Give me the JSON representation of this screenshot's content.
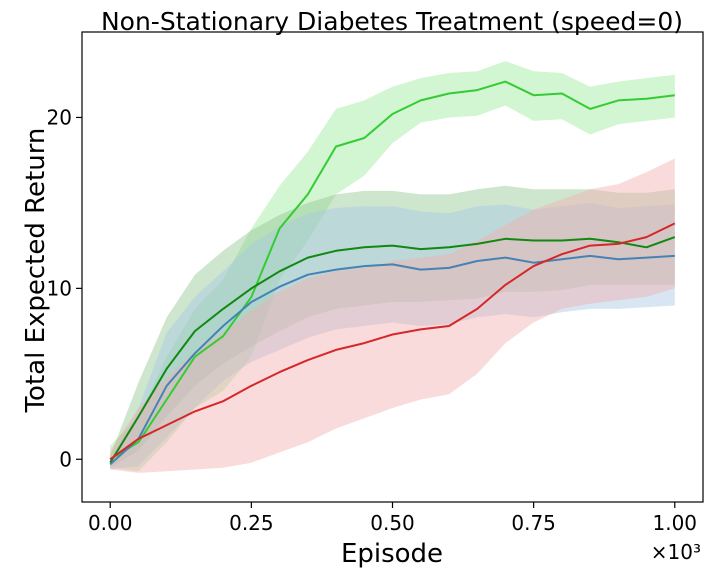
{
  "chart_data": {
    "type": "line",
    "title": "Non-Stationary Diabetes Treatment (speed=0)",
    "xlabel": "Episode",
    "ylabel": "Total Expected Return",
    "x_scale_label": "×10³",
    "xlim": [
      -0.05,
      1.05
    ],
    "ylim": [
      -2.5,
      25.0
    ],
    "xticks": [
      0.0,
      0.25,
      0.5,
      0.75,
      1.0
    ],
    "xtick_labels": [
      "0.00",
      "0.25",
      "0.50",
      "0.75",
      "1.00"
    ],
    "yticks": [
      0,
      10,
      20
    ],
    "ytick_labels": [
      "0",
      "10",
      "20"
    ],
    "grid": false,
    "legend": "none",
    "series": [
      {
        "name": "light-green",
        "color": "#33cc33",
        "band_color": "#9be89b",
        "x": [
          0.0,
          0.05,
          0.1,
          0.15,
          0.2,
          0.25,
          0.3,
          0.35,
          0.4,
          0.45,
          0.5,
          0.55,
          0.6,
          0.65,
          0.7,
          0.75,
          0.8,
          0.85,
          0.9,
          0.95,
          1.0
        ],
        "values": [
          0.0,
          1.0,
          3.5,
          6.0,
          7.2,
          9.5,
          13.5,
          15.5,
          18.3,
          18.8,
          20.2,
          21.0,
          21.4,
          21.6,
          22.1,
          21.3,
          21.4,
          20.5,
          21.0,
          21.1,
          21.3
        ],
        "lower": [
          -0.5,
          -0.7,
          1.0,
          3.0,
          4.0,
          6.0,
          10.5,
          12.8,
          15.5,
          16.6,
          18.5,
          19.7,
          20.0,
          20.1,
          20.7,
          19.8,
          19.9,
          19.0,
          19.6,
          19.8,
          20.0
        ],
        "upper": [
          0.8,
          2.5,
          6.0,
          8.8,
          10.5,
          13.5,
          16.0,
          18.0,
          20.5,
          21.0,
          21.8,
          22.3,
          22.6,
          22.7,
          23.3,
          22.7,
          22.6,
          21.8,
          22.1,
          22.3,
          22.5
        ]
      },
      {
        "name": "dark-green",
        "color": "#118811",
        "band_color": "#93c693",
        "x": [
          0.0,
          0.05,
          0.1,
          0.15,
          0.2,
          0.25,
          0.3,
          0.35,
          0.4,
          0.45,
          0.5,
          0.55,
          0.6,
          0.65,
          0.7,
          0.75,
          0.8,
          0.85,
          0.9,
          0.95,
          1.0
        ],
        "values": [
          -0.2,
          2.5,
          5.3,
          7.5,
          8.8,
          10.0,
          11.0,
          11.8,
          12.2,
          12.4,
          12.5,
          12.3,
          12.4,
          12.6,
          12.9,
          12.8,
          12.8,
          12.9,
          12.7,
          12.4,
          13.0
        ],
        "lower": [
          -0.5,
          0.5,
          2.5,
          4.3,
          5.6,
          6.6,
          7.5,
          8.3,
          8.8,
          9.0,
          9.2,
          9.2,
          9.3,
          9.4,
          9.8,
          9.8,
          9.9,
          10.2,
          10.2,
          10.2,
          10.2
        ],
        "upper": [
          0.2,
          4.5,
          8.3,
          10.8,
          12.2,
          13.4,
          14.3,
          15.0,
          15.5,
          15.7,
          15.7,
          15.5,
          15.5,
          15.8,
          16.0,
          15.8,
          15.8,
          15.8,
          15.6,
          15.6,
          15.8
        ]
      },
      {
        "name": "blue",
        "color": "#4682b4",
        "band_color": "#a8c8e4",
        "x": [
          0.0,
          0.05,
          0.1,
          0.15,
          0.2,
          0.25,
          0.3,
          0.35,
          0.4,
          0.45,
          0.5,
          0.55,
          0.6,
          0.65,
          0.7,
          0.75,
          0.8,
          0.85,
          0.9,
          0.95,
          1.0
        ],
        "values": [
          -0.3,
          1.2,
          4.3,
          6.2,
          7.8,
          9.2,
          10.1,
          10.8,
          11.1,
          11.3,
          11.4,
          11.1,
          11.2,
          11.6,
          11.8,
          11.5,
          11.7,
          11.9,
          11.7,
          11.8,
          11.9
        ],
        "lower": [
          -0.6,
          -0.4,
          1.3,
          3.0,
          4.6,
          5.7,
          6.4,
          7.1,
          7.6,
          7.8,
          8.0,
          7.8,
          7.9,
          8.3,
          8.5,
          8.3,
          8.6,
          8.8,
          8.8,
          8.9,
          9.0
        ],
        "upper": [
          0.0,
          3.0,
          7.4,
          9.5,
          11.0,
          12.6,
          13.6,
          14.4,
          14.7,
          14.8,
          14.8,
          14.5,
          14.4,
          14.8,
          14.9,
          14.6,
          14.8,
          15.0,
          14.7,
          14.8,
          14.9
        ]
      },
      {
        "name": "red",
        "color": "#d62728",
        "band_color": "#f2b0b0",
        "x": [
          0.0,
          0.05,
          0.1,
          0.15,
          0.2,
          0.25,
          0.3,
          0.35,
          0.4,
          0.45,
          0.5,
          0.55,
          0.6,
          0.65,
          0.7,
          0.75,
          0.8,
          0.85,
          0.9,
          0.95,
          1.0
        ],
        "values": [
          0.0,
          1.2,
          2.0,
          2.8,
          3.4,
          4.3,
          5.1,
          5.8,
          6.4,
          6.8,
          7.3,
          7.6,
          7.8,
          8.8,
          10.2,
          11.3,
          12.0,
          12.5,
          12.6,
          13.0,
          13.8
        ],
        "lower": [
          -0.6,
          -0.8,
          -0.7,
          -0.6,
          -0.5,
          -0.2,
          0.4,
          1.0,
          1.8,
          2.4,
          3.0,
          3.5,
          3.8,
          5.0,
          6.8,
          8.0,
          8.8,
          9.1,
          9.3,
          9.5,
          10.0
        ],
        "upper": [
          0.5,
          3.0,
          4.8,
          6.3,
          7.4,
          8.7,
          9.8,
          10.6,
          11.0,
          11.2,
          11.6,
          11.8,
          12.0,
          12.8,
          13.7,
          14.6,
          15.2,
          15.8,
          16.1,
          16.8,
          17.6
        ]
      }
    ]
  }
}
